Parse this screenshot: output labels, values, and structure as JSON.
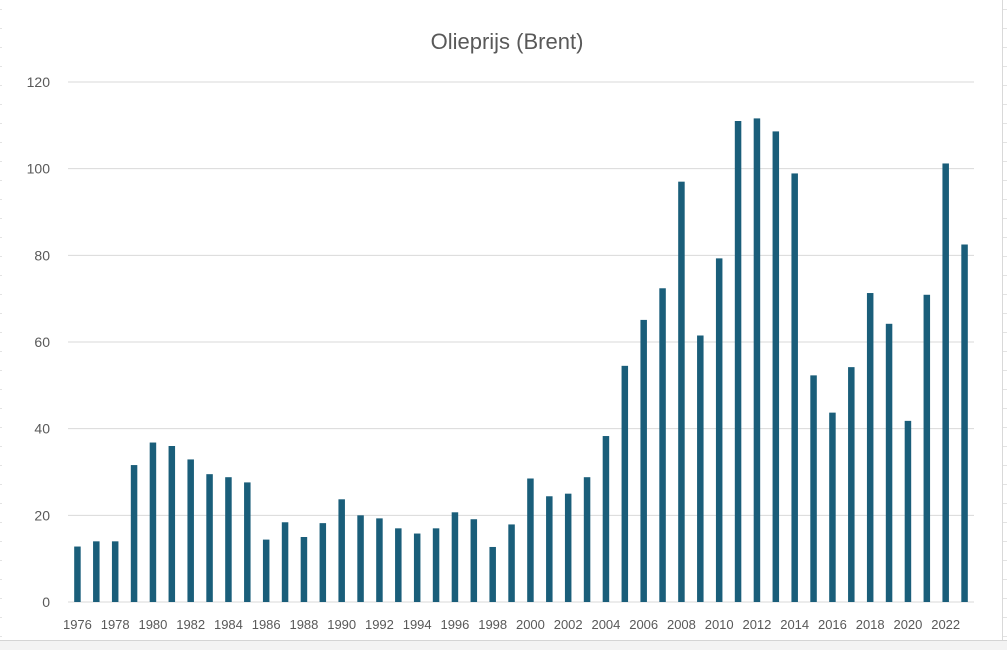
{
  "chart_data": {
    "type": "bar",
    "title": "Olieprijs (Brent)",
    "xlabel": "",
    "ylabel": "",
    "ylim": [
      0,
      120
    ],
    "yticks": [
      0,
      20,
      40,
      60,
      80,
      100,
      120
    ],
    "grid": "horizontal",
    "bar_color": "#1a5e7a",
    "categories": [
      "1976",
      "1977",
      "1978",
      "1979",
      "1980",
      "1981",
      "1982",
      "1983",
      "1984",
      "1985",
      "1986",
      "1987",
      "1988",
      "1989",
      "1990",
      "1991",
      "1992",
      "1993",
      "1994",
      "1995",
      "1996",
      "1997",
      "1998",
      "1999",
      "2000",
      "2001",
      "2002",
      "2003",
      "2004",
      "2005",
      "2006",
      "2007",
      "2008",
      "2009",
      "2010",
      "2011",
      "2012",
      "2013",
      "2014",
      "2015",
      "2016",
      "2017",
      "2018",
      "2019",
      "2020",
      "2021",
      "2022",
      "2023"
    ],
    "x_tick_labels": [
      "1976",
      "",
      "1978",
      "",
      "1980",
      "",
      "1982",
      "",
      "1984",
      "",
      "1986",
      "",
      "1988",
      "",
      "1990",
      "",
      "1992",
      "",
      "1994",
      "",
      "1996",
      "",
      "1998",
      "",
      "2000",
      "",
      "2002",
      "",
      "2004",
      "",
      "2006",
      "",
      "2008",
      "",
      "2010",
      "",
      "2012",
      "",
      "2014",
      "",
      "2016",
      "",
      "2018",
      "",
      "2020",
      "",
      "2022",
      ""
    ],
    "values": [
      12.8,
      14.0,
      14.0,
      31.6,
      36.8,
      36.0,
      32.9,
      29.5,
      28.8,
      27.6,
      14.4,
      18.4,
      15.0,
      18.2,
      23.7,
      20.0,
      19.3,
      17.0,
      15.8,
      17.0,
      20.7,
      19.1,
      12.7,
      17.9,
      28.5,
      24.4,
      25.0,
      28.8,
      38.3,
      54.5,
      65.1,
      72.4,
      97.0,
      61.5,
      79.3,
      111.0,
      111.6,
      108.6,
      98.9,
      52.3,
      43.7,
      54.2,
      71.3,
      64.2,
      41.8,
      70.9,
      101.2,
      82.5
    ]
  }
}
